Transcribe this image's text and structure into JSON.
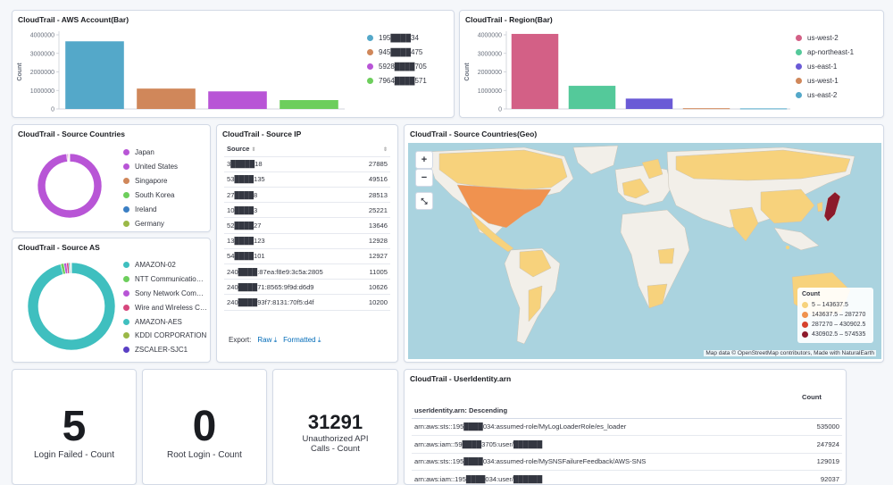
{
  "panels": {
    "aws_account": {
      "title": "CloudTrail - AWS Account(Bar)",
      "ylabel": "Count",
      "ticks": [
        "4000000",
        "3000000",
        "2000000",
        "1000000",
        "0"
      ],
      "legend": [
        {
          "label": "195████34",
          "color": "#54a8c9"
        },
        {
          "label": "945████475",
          "color": "#d0875a"
        },
        {
          "label": "5928████705",
          "color": "#b855d6"
        },
        {
          "label": "7964████571",
          "color": "#6dce5c"
        }
      ]
    },
    "region": {
      "title": "CloudTrail - Region(Bar)",
      "ylabel": "Count",
      "ticks": [
        "4000000",
        "3000000",
        "2000000",
        "1000000",
        "0"
      ],
      "legend": [
        {
          "label": "us-west-2",
          "color": "#d36086"
        },
        {
          "label": "ap-northeast-1",
          "color": "#54c99a"
        },
        {
          "label": "us-east-1",
          "color": "#6a5ad6"
        },
        {
          "label": "us-west-1",
          "color": "#d0875a"
        },
        {
          "label": "us-east-2",
          "color": "#54a8c9"
        }
      ]
    },
    "source_countries": {
      "title": "CloudTrail - Source Countries",
      "legend": [
        {
          "label": "Japan",
          "color": "#b855d6"
        },
        {
          "label": "United States",
          "color": "#b855d6"
        },
        {
          "label": "Singapore",
          "color": "#d0875a"
        },
        {
          "label": "South Korea",
          "color": "#6dce5c"
        },
        {
          "label": "Ireland",
          "color": "#3b7fc4"
        },
        {
          "label": "Germany",
          "color": "#9ab847"
        }
      ]
    },
    "source_as": {
      "title": "CloudTrail - Source AS",
      "legend": [
        {
          "label": "AMAZON-02",
          "color": "#3fbfbf"
        },
        {
          "label": "NTT Communicatio…",
          "color": "#6dce5c"
        },
        {
          "label": "Sony Network Com…",
          "color": "#b855d6"
        },
        {
          "label": "Wire and Wireless C…",
          "color": "#d6477c"
        },
        {
          "label": "AMAZON-AES",
          "color": "#3fbfbf"
        },
        {
          "label": "KDDI CORPORATION",
          "color": "#9ab847"
        },
        {
          "label": "ZSCALER-SJC1",
          "color": "#5a3fc4"
        }
      ]
    },
    "source_ip": {
      "title": "CloudTrail - Source IP",
      "col_source": "Source",
      "rows": [
        {
          "ip": "3█████18",
          "count": "27885"
        },
        {
          "ip": "53████135",
          "count": "49516"
        },
        {
          "ip": "27████8",
          "count": "28513"
        },
        {
          "ip": "10████3",
          "count": "25221"
        },
        {
          "ip": "52████27",
          "count": "13646"
        },
        {
          "ip": "13████123",
          "count": "12928"
        },
        {
          "ip": "54████101",
          "count": "12927"
        },
        {
          "ip": "240████:87ea:f8e9:3c5a:2805",
          "count": "11005"
        },
        {
          "ip": "240████71:8565:9f9d:d6d9",
          "count": "10626"
        },
        {
          "ip": "240████93f7:8131:70f5:d4f",
          "count": "10200"
        }
      ],
      "export_label": "Export:",
      "raw_label": "Raw",
      "formatted_label": "Formatted"
    },
    "geo": {
      "title": "CloudTrail - Source Countries(Geo)",
      "legend_title": "Count",
      "legend": [
        {
          "label": "5 – 143637.5",
          "color": "#f7d27c"
        },
        {
          "label": "143637.5 – 287270",
          "color": "#f0924f"
        },
        {
          "label": "287270 – 430902.5",
          "color": "#d6422d"
        },
        {
          "label": "430902.5 – 574535",
          "color": "#8c1a2b"
        }
      ],
      "attribution": "Map data © OpenStreetMap contributors, Made with NaturalEarth"
    },
    "login_failed": {
      "value": "5",
      "label": "Login Failed - Count"
    },
    "root_login": {
      "value": "0",
      "label": "Root Login - Count"
    },
    "unauthorized": {
      "value": "31291",
      "label_line1": "Unauthorized API",
      "label_line2": "Calls - Count"
    },
    "user_identity": {
      "title": "CloudTrail - UserIdentity.arn",
      "col_arn": "userIdentity.arn: Descending",
      "col_count": "Count",
      "rows": [
        {
          "arn": "arn:aws:sts::195████034:assumed-role/MyLogLoaderRole/es_loader",
          "count": "535000"
        },
        {
          "arn": "arn:aws:iam::59████3705:user/██████",
          "count": "247924"
        },
        {
          "arn": "arn:aws:sts::195████034:assumed-role/MySNSFailureFeedback/AWS-SNS",
          "count": "129019"
        },
        {
          "arn": "arn:aws:iam::195████034:user/██████",
          "count": "92037"
        }
      ]
    }
  },
  "chart_data": [
    {
      "type": "bar",
      "title": "CloudTrail - AWS Account(Bar)",
      "ylabel": "Count",
      "ylim": [
        0,
        4000000
      ],
      "categories": [
        "195████34",
        "945████475",
        "5928████705",
        "7964████571"
      ],
      "values": [
        3650000,
        1100000,
        950000,
        480000
      ],
      "colors": [
        "#54a8c9",
        "#d0875a",
        "#b855d6",
        "#6dce5c"
      ]
    },
    {
      "type": "bar",
      "title": "CloudTrail - Region(Bar)",
      "ylabel": "Count",
      "ylim": [
        0,
        4000000
      ],
      "categories": [
        "us-west-2",
        "ap-northeast-1",
        "us-east-1",
        "us-west-1",
        "us-east-2"
      ],
      "values": [
        4050000,
        1250000,
        560000,
        40000,
        30000
      ],
      "colors": [
        "#d36086",
        "#54c99a",
        "#6a5ad6",
        "#d0875a",
        "#54a8c9"
      ]
    },
    {
      "type": "pie",
      "title": "CloudTrail - Source Countries",
      "categories": [
        "Japan",
        "United States",
        "Singapore",
        "South Korea",
        "Ireland",
        "Germany"
      ],
      "values": [
        0.985,
        0.005,
        0.004,
        0.003,
        0.002,
        0.001
      ],
      "colors": [
        "#b855d6",
        "#b855d6",
        "#d0875a",
        "#6dce5c",
        "#3b7fc4",
        "#9ab847"
      ]
    },
    {
      "type": "pie",
      "title": "CloudTrail - Source AS",
      "categories": [
        "AMAZON-02",
        "NTT Communicatio…",
        "Sony Network Com…",
        "Wire and Wireless C…",
        "AMAZON-AES",
        "KDDI CORPORATION",
        "ZSCALER-SJC1"
      ],
      "values": [
        0.96,
        0.012,
        0.01,
        0.008,
        0.005,
        0.003,
        0.002
      ],
      "colors": [
        "#3fbfbf",
        "#6dce5c",
        "#b855d6",
        "#d6477c",
        "#3fbfbf",
        "#9ab847",
        "#5a3fc4"
      ]
    }
  ]
}
